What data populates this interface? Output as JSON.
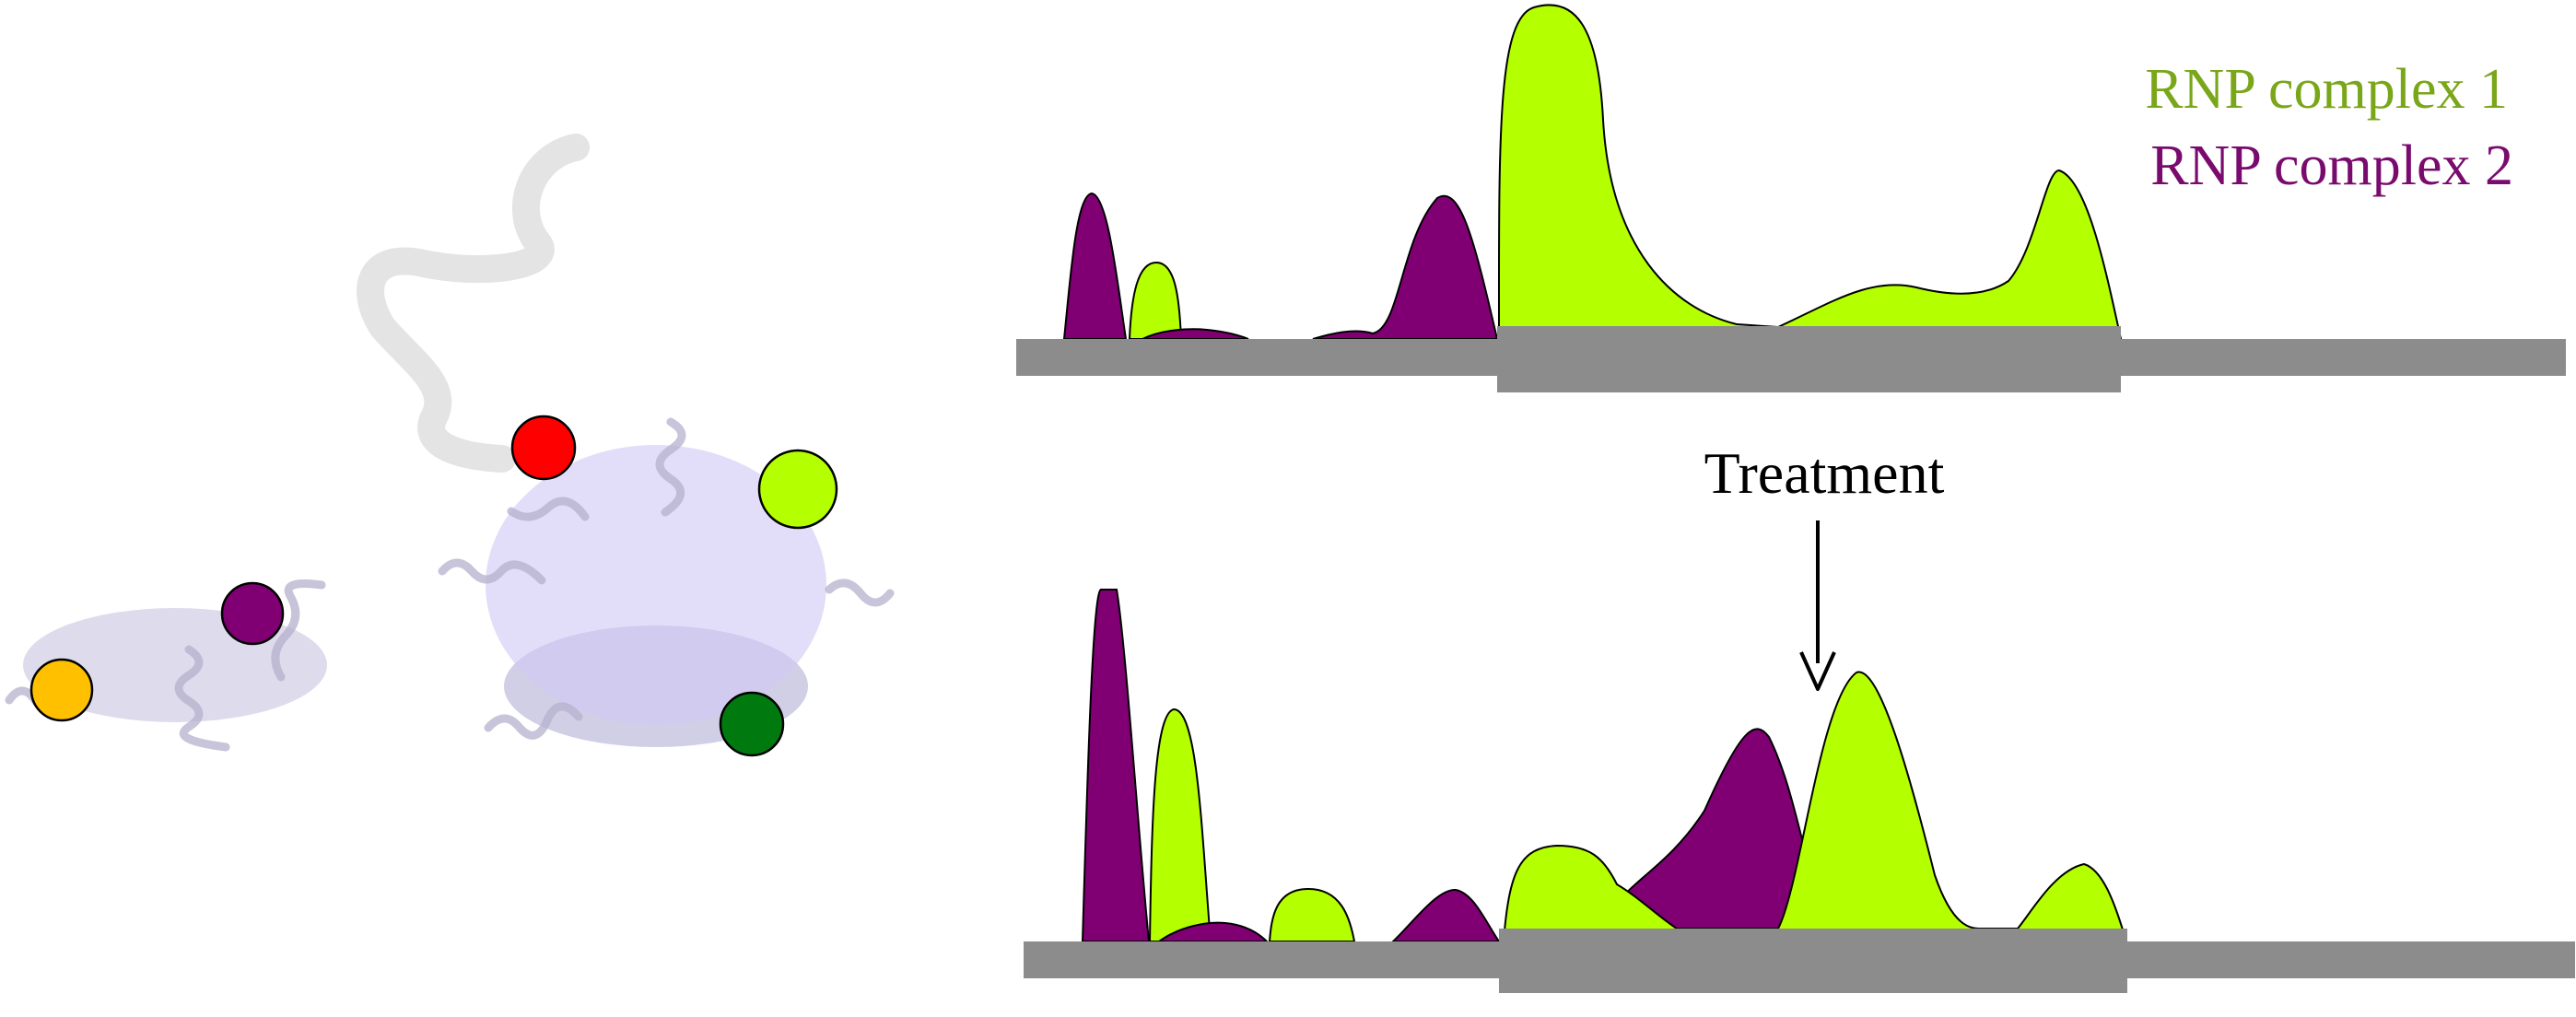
{
  "legend": {
    "complex1": "RNP complex 1",
    "complex2": "RNP complex 2"
  },
  "annotation": {
    "treatment": "Treatment"
  },
  "colors": {
    "complex1": "#b4ff00",
    "complex2": "#800073",
    "complex1_text": "#7aa61a",
    "complex2_text": "#7a0b6e",
    "axis_bar": "#8c8c8c",
    "particle_body": "#c9c2ee",
    "particle_shadow": "#c2bfdc",
    "rna_strand": "#b5b0cc",
    "protein_red": "#ff0000",
    "protein_lime": "#b4ff00",
    "protein_purple": "#800073",
    "protein_orange": "#ffc000",
    "protein_green": "#007a0f"
  },
  "icons": [
    "rnp-particle",
    "rna-strand",
    "protein-dot"
  ]
}
